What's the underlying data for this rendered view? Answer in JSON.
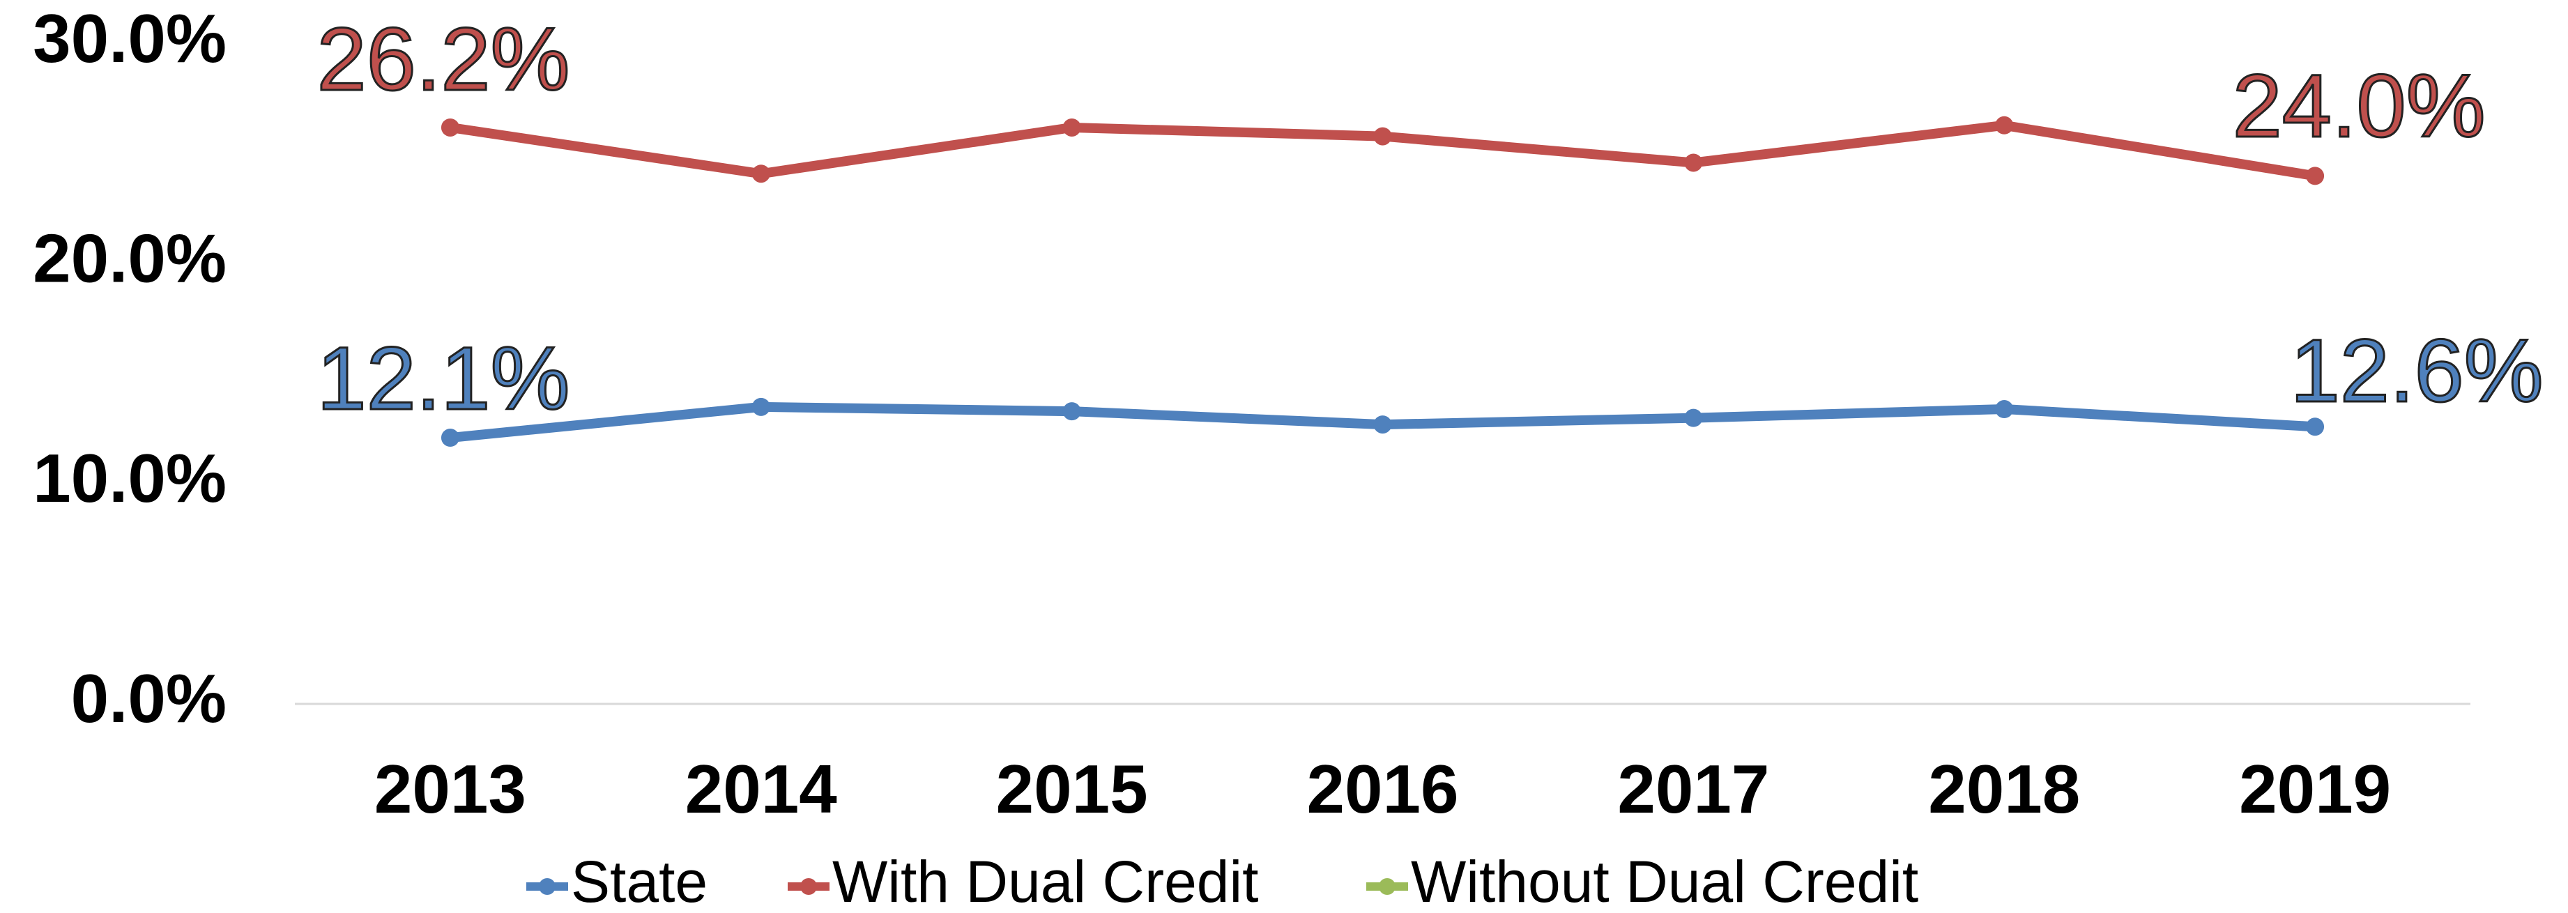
{
  "chart_data": {
    "type": "line",
    "categories": [
      "2013",
      "2014",
      "2015",
      "2016",
      "2017",
      "2018",
      "2019"
    ],
    "series": [
      {
        "name": "State",
        "color": "#4f81bd",
        "values": [
          12.1,
          13.5,
          13.3,
          12.7,
          13.0,
          13.4,
          12.6
        ],
        "value_labels": [
          "12.1%",
          null,
          null,
          null,
          null,
          null,
          "12.6%"
        ]
      },
      {
        "name": "With Dual Credit",
        "color": "#c0504d",
        "values": [
          26.2,
          24.1,
          26.2,
          25.8,
          24.6,
          26.3,
          24.0
        ],
        "value_labels": [
          "26.2%",
          null,
          null,
          null,
          null,
          null,
          "24.0%"
        ]
      },
      {
        "name": "Without Dual Credit",
        "color": "#9bbb59",
        "values": [
          null,
          null,
          null,
          null,
          null,
          null,
          null
        ]
      }
    ],
    "ylim": [
      0,
      30
    ],
    "yticks": [
      {
        "value": 0,
        "label": "0.0%"
      },
      {
        "value": 10,
        "label": "10.0%"
      },
      {
        "value": 20,
        "label": "20.0%"
      },
      {
        "value": 30,
        "label": "30.0%"
      }
    ],
    "grid": false,
    "legend": "bottom"
  }
}
